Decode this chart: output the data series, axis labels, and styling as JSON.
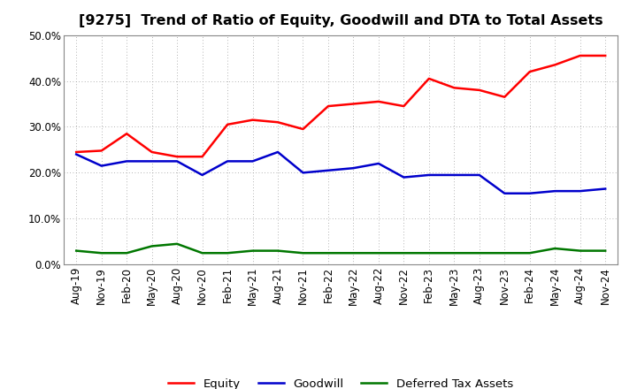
{
  "title": "[9275]  Trend of Ratio of Equity, Goodwill and DTA to Total Assets",
  "x_labels": [
    "Aug-19",
    "Nov-19",
    "Feb-20",
    "May-20",
    "Aug-20",
    "Nov-20",
    "Feb-21",
    "May-21",
    "Aug-21",
    "Nov-21",
    "Feb-22",
    "May-22",
    "Aug-22",
    "Nov-22",
    "Feb-23",
    "May-23",
    "Aug-23",
    "Nov-23",
    "Feb-24",
    "May-24",
    "Aug-24",
    "Nov-24"
  ],
  "equity": [
    24.5,
    24.8,
    28.5,
    24.5,
    23.5,
    23.5,
    30.5,
    31.5,
    31.0,
    29.5,
    34.5,
    35.0,
    35.5,
    34.5,
    40.5,
    38.5,
    38.0,
    36.5,
    42.0,
    43.5,
    45.5,
    45.5
  ],
  "goodwill": [
    24.0,
    21.5,
    22.5,
    22.5,
    22.5,
    19.5,
    22.5,
    22.5,
    24.5,
    20.0,
    20.5,
    21.0,
    22.0,
    19.0,
    19.5,
    19.5,
    19.5,
    15.5,
    15.5,
    16.0,
    16.0,
    16.5
  ],
  "dta": [
    3.0,
    2.5,
    2.5,
    4.0,
    4.5,
    2.5,
    2.5,
    3.0,
    3.0,
    2.5,
    2.5,
    2.5,
    2.5,
    2.5,
    2.5,
    2.5,
    2.5,
    2.5,
    2.5,
    3.5,
    3.0,
    3.0
  ],
  "equity_color": "#ff0000",
  "goodwill_color": "#0000cc",
  "dta_color": "#007700",
  "ylim": [
    0,
    50
  ],
  "yticks": [
    0,
    10,
    20,
    30,
    40,
    50
  ],
  "background_color": "#ffffff",
  "grid_color": "#999999",
  "legend_labels": [
    "Equity",
    "Goodwill",
    "Deferred Tax Assets"
  ],
  "title_fontsize": 11.5,
  "tick_fontsize": 8.5,
  "legend_fontsize": 9.5,
  "linewidth": 1.8
}
